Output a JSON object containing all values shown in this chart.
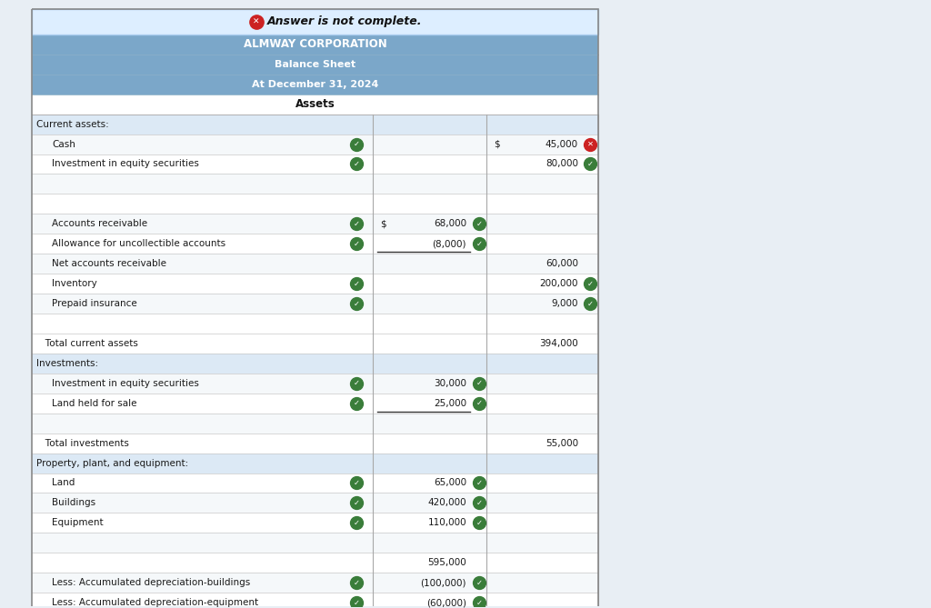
{
  "title_line1": "ALMWAY CORPORATION",
  "title_line2": "Balance Sheet",
  "title_line3": "At December 31, 2024",
  "assets_header": "Assets",
  "banner_text": "Answer is not complete.",
  "banner_bg": "#ddeeff",
  "banner_border": "#aaccee",
  "header_bg": "#7ba7c9",
  "subheader_bg": "#dce9f5",
  "row_bg_odd": "#f5f8fa",
  "row_bg_even": "#ffffff",
  "text_color": "#1a1a1a",
  "fig_bg": "#e8eef4",
  "green_check": "#3a7d3a",
  "red_x": "#cc2222",
  "rows": [
    {
      "label": "Current assets:",
      "col2": "",
      "col3": "",
      "indent": 0,
      "style": "section_header",
      "check1": false,
      "check2": false,
      "check3": false,
      "dollar2": false,
      "dollar3": false,
      "error3": false
    },
    {
      "label": "Cash",
      "col2": "",
      "col3": "45,000",
      "indent": 1,
      "style": "data",
      "check1": true,
      "check2": false,
      "check3": false,
      "dollar2": false,
      "dollar3": true,
      "error3": true
    },
    {
      "label": "Investment in equity securities",
      "col2": "",
      "col3": "80,000",
      "indent": 1,
      "style": "data",
      "check1": true,
      "check2": false,
      "check3": true,
      "dollar2": false,
      "dollar3": false,
      "error3": false
    },
    {
      "label": "",
      "col2": "",
      "col3": "",
      "indent": 0,
      "style": "empty",
      "check1": false,
      "check2": false,
      "check3": false,
      "dollar2": false,
      "dollar3": false,
      "error3": false
    },
    {
      "label": "",
      "col2": "",
      "col3": "",
      "indent": 0,
      "style": "empty",
      "check1": false,
      "check2": false,
      "check3": false,
      "dollar2": false,
      "dollar3": false,
      "error3": false
    },
    {
      "label": "Accounts receivable",
      "col2": "68,000",
      "col3": "",
      "indent": 1,
      "style": "data",
      "check1": true,
      "check2": true,
      "check3": false,
      "dollar2": true,
      "dollar3": false,
      "error3": false
    },
    {
      "label": "Allowance for uncollectible accounts",
      "col2": "(8,000)",
      "col3": "",
      "indent": 1,
      "style": "data",
      "check1": true,
      "check2": true,
      "check3": false,
      "dollar2": false,
      "dollar3": false,
      "error3": false,
      "underline_col2": true
    },
    {
      "label": "Net accounts receivable",
      "col2": "",
      "col3": "60,000",
      "indent": 1,
      "style": "data",
      "check1": false,
      "check2": false,
      "check3": false,
      "dollar2": false,
      "dollar3": false,
      "error3": false
    },
    {
      "label": "Inventory",
      "col2": "",
      "col3": "200,000",
      "indent": 1,
      "style": "data",
      "check1": true,
      "check2": false,
      "check3": true,
      "dollar2": false,
      "dollar3": false,
      "error3": false
    },
    {
      "label": "Prepaid insurance",
      "col2": "",
      "col3": "9,000",
      "indent": 1,
      "style": "data",
      "check1": true,
      "check2": false,
      "check3": true,
      "dollar2": false,
      "dollar3": false,
      "error3": false
    },
    {
      "label": "",
      "col2": "",
      "col3": "",
      "indent": 0,
      "style": "empty",
      "check1": false,
      "check2": false,
      "check3": false,
      "dollar2": false,
      "dollar3": false,
      "error3": false
    },
    {
      "label": "   Total current assets",
      "col2": "",
      "col3": "394,000",
      "indent": 0,
      "style": "total",
      "check1": false,
      "check2": false,
      "check3": false,
      "dollar2": false,
      "dollar3": false,
      "error3": false
    },
    {
      "label": "Investments:",
      "col2": "",
      "col3": "",
      "indent": 0,
      "style": "section_header",
      "check1": false,
      "check2": false,
      "check3": false,
      "dollar2": false,
      "dollar3": false,
      "error3": false
    },
    {
      "label": "Investment in equity securities",
      "col2": "30,000",
      "col3": "",
      "indent": 1,
      "style": "data",
      "check1": true,
      "check2": true,
      "check3": false,
      "dollar2": false,
      "dollar3": false,
      "error3": false
    },
    {
      "label": "Land held for sale",
      "col2": "25,000",
      "col3": "",
      "indent": 1,
      "style": "data",
      "check1": true,
      "check2": true,
      "check3": false,
      "dollar2": false,
      "dollar3": false,
      "error3": false,
      "underline_col2": true
    },
    {
      "label": "",
      "col2": "",
      "col3": "",
      "indent": 0,
      "style": "empty",
      "check1": false,
      "check2": false,
      "check3": false,
      "dollar2": false,
      "dollar3": false,
      "error3": false
    },
    {
      "label": "   Total investments",
      "col2": "",
      "col3": "55,000",
      "indent": 0,
      "style": "total",
      "check1": false,
      "check2": false,
      "check3": false,
      "dollar2": false,
      "dollar3": false,
      "error3": false
    },
    {
      "label": "Property, plant, and equipment:",
      "col2": "",
      "col3": "",
      "indent": 0,
      "style": "section_header",
      "check1": false,
      "check2": false,
      "check3": false,
      "dollar2": false,
      "dollar3": false,
      "error3": false
    },
    {
      "label": "Land",
      "col2": "65,000",
      "col3": "",
      "indent": 1,
      "style": "data",
      "check1": true,
      "check2": true,
      "check3": false,
      "dollar2": false,
      "dollar3": false,
      "error3": false
    },
    {
      "label": "Buildings",
      "col2": "420,000",
      "col3": "",
      "indent": 1,
      "style": "data",
      "check1": true,
      "check2": true,
      "check3": false,
      "dollar2": false,
      "dollar3": false,
      "error3": false
    },
    {
      "label": "Equipment",
      "col2": "110,000",
      "col3": "",
      "indent": 1,
      "style": "data",
      "check1": true,
      "check2": true,
      "check3": false,
      "dollar2": false,
      "dollar3": false,
      "error3": false
    },
    {
      "label": "",
      "col2": "",
      "col3": "",
      "indent": 0,
      "style": "empty",
      "check1": false,
      "check2": false,
      "check3": false,
      "dollar2": false,
      "dollar3": false,
      "error3": false
    },
    {
      "label": "",
      "col2": "595,000",
      "col3": "",
      "indent": 0,
      "style": "subtotal_only",
      "check1": false,
      "check2": false,
      "check3": false,
      "dollar2": false,
      "dollar3": false,
      "error3": false
    },
    {
      "label": "Less: Accumulated depreciation-buildings",
      "col2": "(100,000)",
      "col3": "",
      "indent": 1,
      "style": "data",
      "check1": true,
      "check2": true,
      "check3": false,
      "dollar2": false,
      "dollar3": false,
      "error3": false
    },
    {
      "label": "Less: Accumulated depreciation-equipment",
      "col2": "(60,000)",
      "col3": "",
      "indent": 1,
      "style": "data",
      "check1": true,
      "check2": true,
      "check3": false,
      "dollar2": false,
      "dollar3": false,
      "error3": false
    }
  ]
}
